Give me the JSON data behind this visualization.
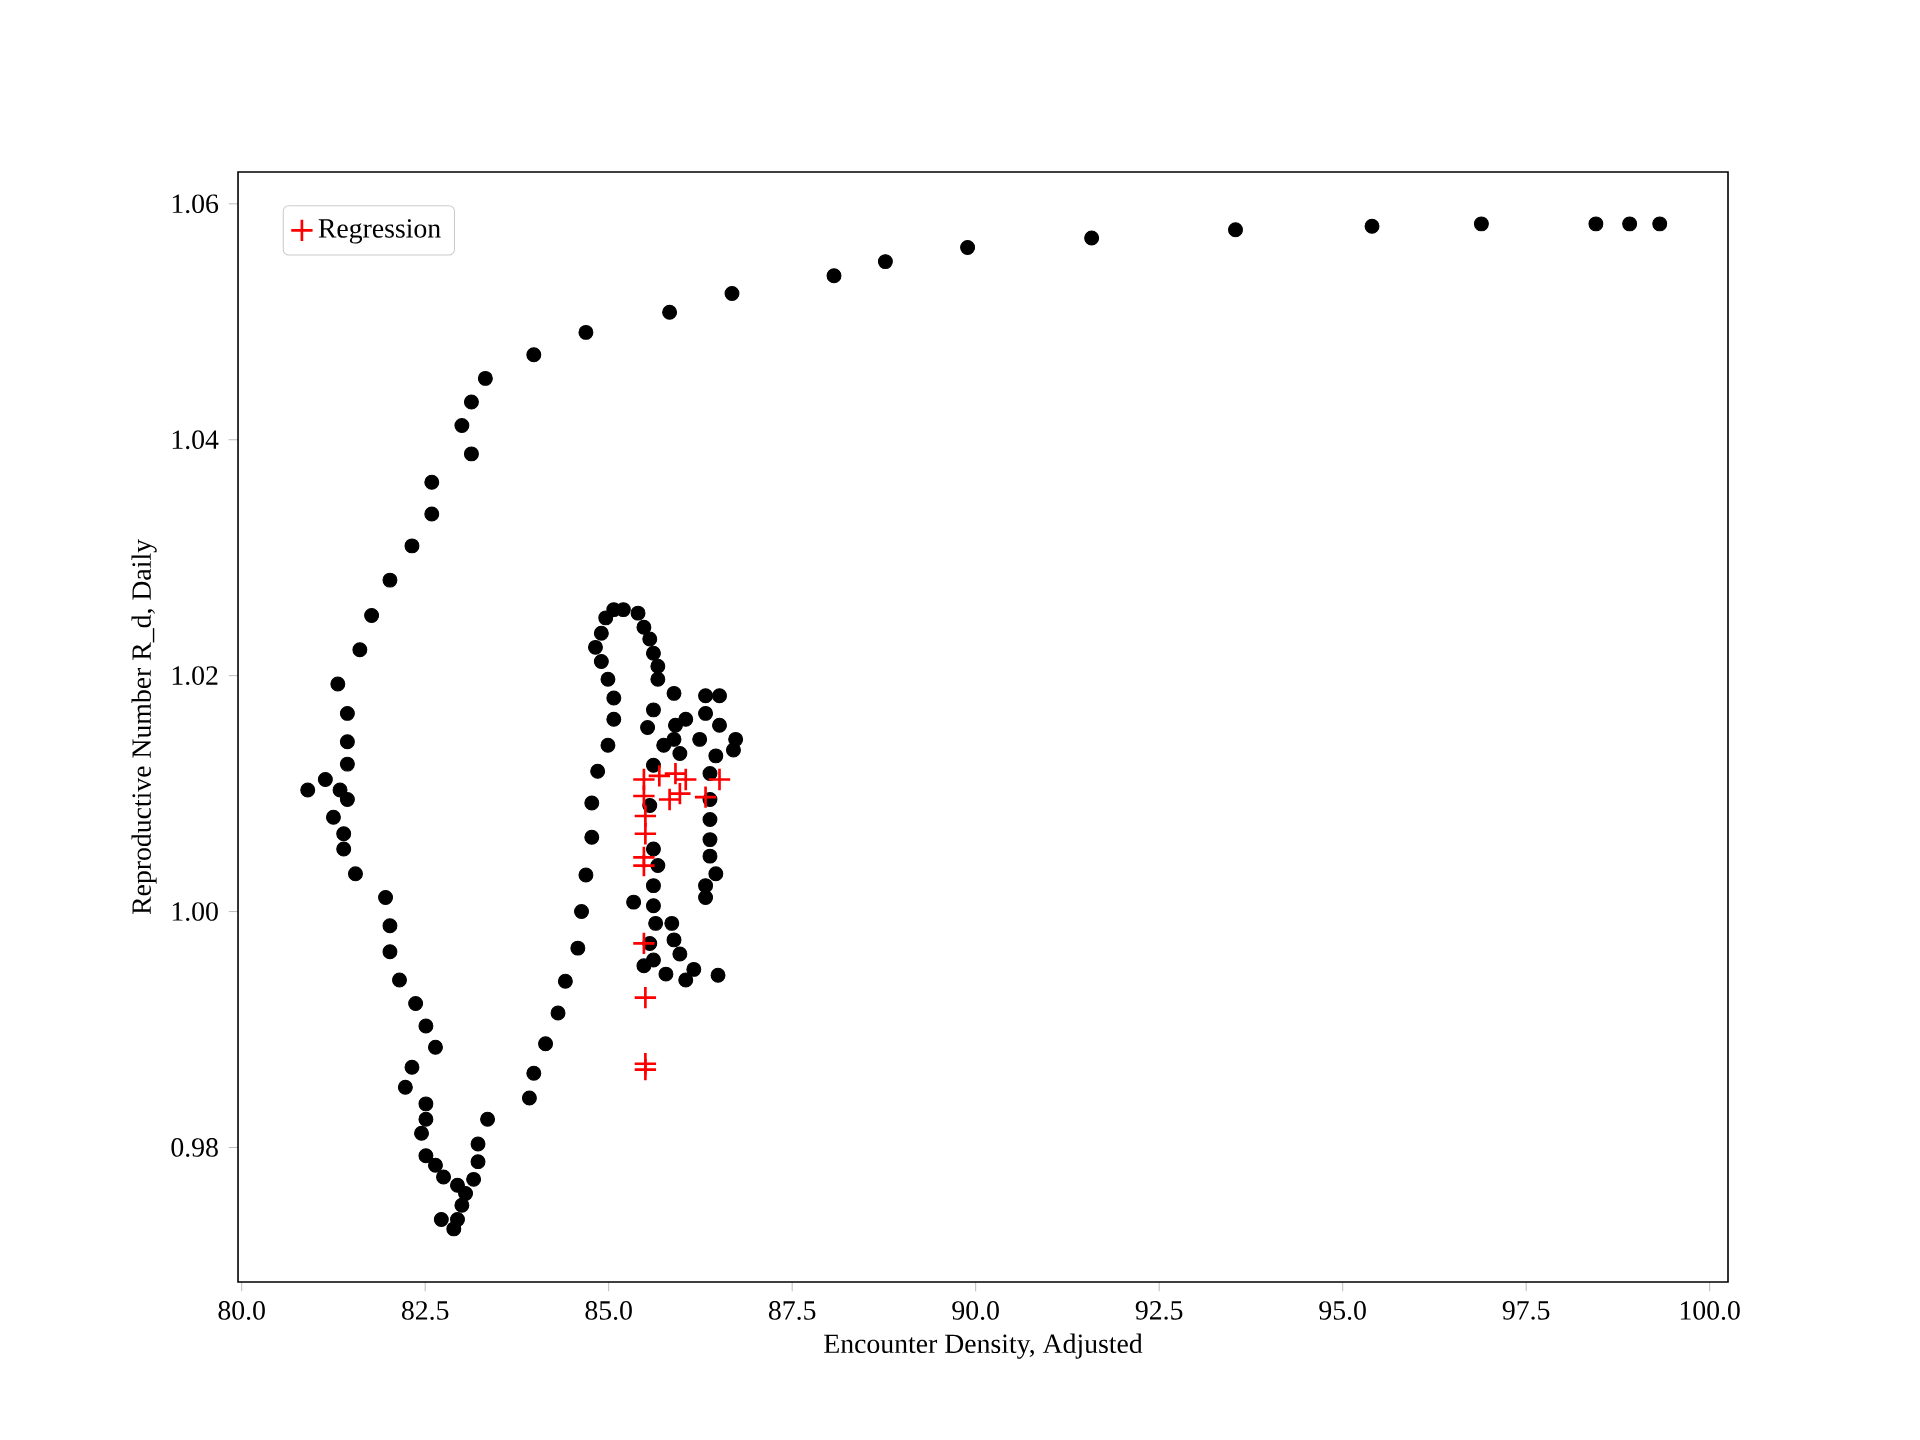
{
  "chart_data": {
    "type": "scatter",
    "xlabel": "Encounter Density, Adjusted",
    "ylabel": "Reproductive Number R_d, Daily",
    "xlim": [
      79.95,
      100.25
    ],
    "ylim": [
      0.9686,
      1.0627
    ],
    "xticks": [
      {
        "value": 80,
        "label": "80.0"
      },
      {
        "value": 82.5,
        "label": "82.5"
      },
      {
        "value": 85,
        "label": "85.0"
      },
      {
        "value": 87.5,
        "label": "87.5"
      },
      {
        "value": 90,
        "label": "90.0"
      },
      {
        "value": 92.5,
        "label": "92.5"
      },
      {
        "value": 95,
        "label": "95.0"
      },
      {
        "value": 97.5,
        "label": "97.5"
      },
      {
        "value": 100,
        "label": "100.0"
      }
    ],
    "yticks": [
      {
        "value": 0.98,
        "label": "0.98"
      },
      {
        "value": 1.0,
        "label": "1.00"
      },
      {
        "value": 1.02,
        "label": "1.02"
      },
      {
        "value": 1.04,
        "label": "1.04"
      },
      {
        "value": 1.06,
        "label": "1.06"
      }
    ],
    "legend": "top left",
    "series": [
      {
        "color": "#000000",
        "marker": "circle",
        "x": [
          99.32,
          98.91,
          98.45,
          96.89,
          95.4,
          93.54,
          91.58,
          89.89,
          88.77,
          88.07,
          86.68,
          85.83,
          84.69,
          83.98,
          83.32,
          83.13,
          83.0,
          83.13,
          82.59,
          82.59,
          82.32,
          82.02,
          81.77,
          81.61,
          81.31,
          81.44,
          81.44,
          81.44,
          80.9,
          81.14,
          81.34,
          81.44,
          81.25,
          81.39,
          81.39,
          81.55,
          81.96,
          82.02,
          82.02,
          82.15,
          82.37,
          82.51,
          82.64,
          82.32,
          82.23,
          82.51,
          82.51,
          82.45,
          82.51,
          82.64,
          82.75,
          82.94,
          83.05,
          83.0,
          82.94,
          82.72,
          82.89,
          83.16,
          83.22,
          83.22,
          83.35,
          83.92,
          83.98,
          84.14,
          84.31,
          84.41,
          84.58,
          84.63,
          84.69,
          84.77,
          84.77,
          84.85,
          84.99,
          85.07,
          85.07,
          84.99,
          84.9,
          84.82,
          84.9,
          84.96,
          85.07,
          85.2,
          85.4,
          85.48,
          85.56,
          85.61,
          85.67,
          85.67,
          85.89,
          85.61,
          85.53,
          85.91,
          86.05,
          86.32,
          86.51,
          86.32,
          86.51,
          86.73,
          86.7,
          86.46,
          85.89,
          85.97,
          85.75,
          86.24,
          85.61,
          85.56,
          86.38,
          86.38,
          86.38,
          86.38,
          86.38,
          86.46,
          86.32,
          86.32,
          85.61,
          85.67,
          85.61,
          85.34,
          85.61,
          85.64,
          85.86,
          85.89,
          85.56,
          85.97,
          85.61,
          85.48,
          86.16,
          86.05,
          85.78,
          86.49
        ],
        "values": [
          1.0583,
          1.0583,
          1.0583,
          1.0583,
          1.0581,
          1.0578,
          1.0571,
          1.0563,
          1.0551,
          1.0539,
          1.0524,
          1.0508,
          1.0491,
          1.0472,
          1.0452,
          1.0432,
          1.0412,
          1.0388,
          1.0364,
          1.0337,
          1.031,
          1.0281,
          1.0251,
          1.0222,
          1.0193,
          1.0168,
          1.0144,
          1.0125,
          1.0103,
          1.0112,
          1.0103,
          1.0095,
          1.008,
          1.0066,
          1.0053,
          1.0032,
          1.0012,
          0.9988,
          0.9966,
          0.9942,
          0.9922,
          0.9903,
          0.9885,
          0.9868,
          0.9851,
          0.9837,
          0.9824,
          0.9812,
          0.9793,
          0.9785,
          0.9775,
          0.9768,
          0.9761,
          0.9751,
          0.9739,
          0.9739,
          0.9731,
          0.9773,
          0.9788,
          0.9803,
          0.9824,
          0.9842,
          0.9863,
          0.9888,
          0.9914,
          0.9941,
          0.9969,
          1.0,
          1.0031,
          1.0063,
          1.0092,
          1.0119,
          1.0141,
          1.0163,
          1.0181,
          1.0197,
          1.0212,
          1.0224,
          1.0236,
          1.0249,
          1.0256,
          1.0256,
          1.0253,
          1.0241,
          1.0231,
          1.0219,
          1.0208,
          1.0197,
          1.0185,
          1.0171,
          1.0156,
          1.0158,
          1.0163,
          1.0183,
          1.0183,
          1.0168,
          1.0158,
          1.0146,
          1.0137,
          1.0132,
          1.0146,
          1.0134,
          1.0141,
          1.0146,
          1.0124,
          1.009,
          1.0117,
          1.0095,
          1.0078,
          1.0061,
          1.0047,
          1.0032,
          1.0022,
          1.0012,
          1.0053,
          1.0039,
          1.0022,
          1.0008,
          1.0005,
          0.999,
          0.999,
          0.9976,
          0.9973,
          0.9964,
          0.9959,
          0.9954,
          0.9951,
          0.9942,
          0.9947,
          0.9946
        ]
      },
      {
        "name": "Regression",
        "color": "#ff0000",
        "marker": "cross",
        "x": [
          85.48,
          85.48,
          85.69,
          85.91,
          86.05,
          85.83,
          85.97,
          86.51,
          86.32,
          85.5,
          85.5,
          85.48,
          85.48,
          85.48,
          85.5,
          85.5,
          85.5
        ],
        "values": [
          1.0112,
          1.0098,
          1.0115,
          1.0117,
          1.0112,
          1.0095,
          1.01,
          1.0112,
          1.0097,
          1.0081,
          1.0066,
          1.0046,
          1.0039,
          0.9973,
          0.9927,
          0.9871,
          0.9866
        ]
      }
    ]
  }
}
